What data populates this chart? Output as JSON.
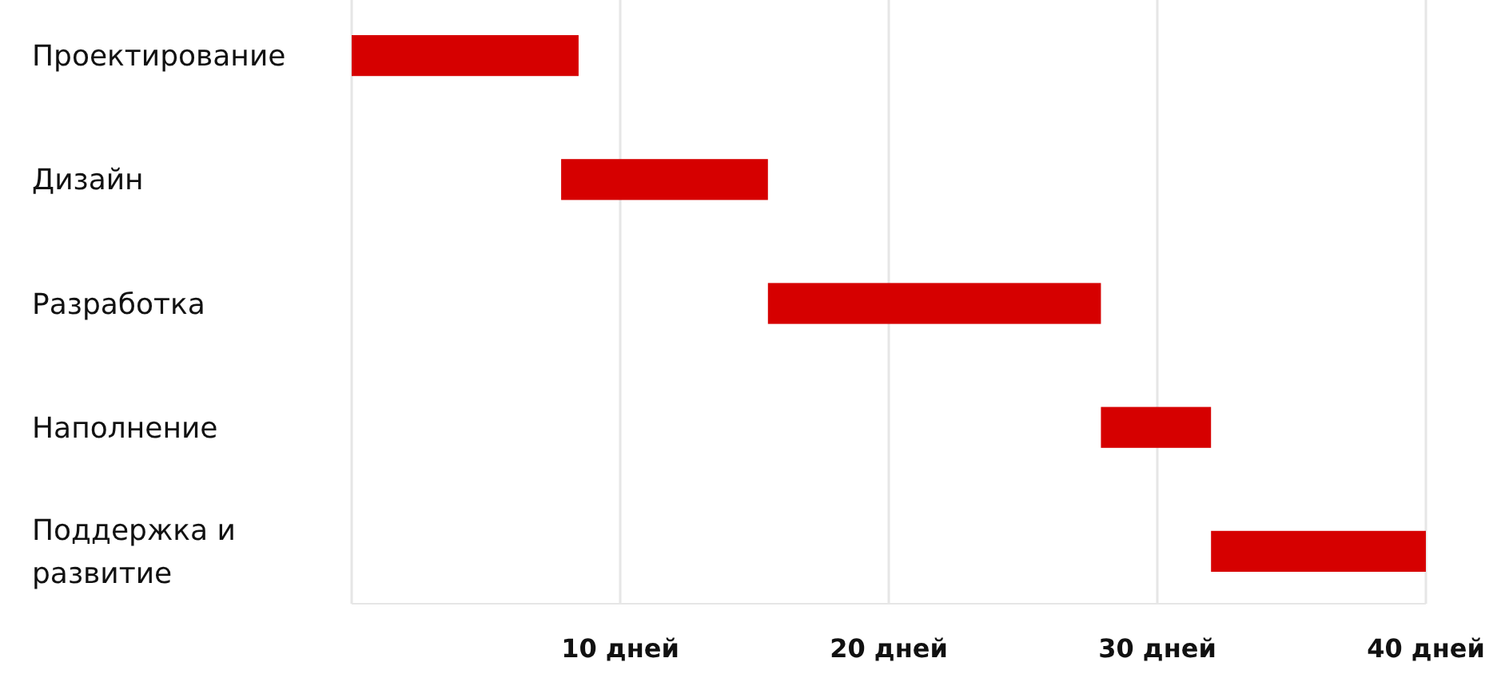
{
  "chart_data": {
    "type": "bar",
    "orientation": "horizontal",
    "categories": [
      "Проектирование",
      "Дизайн",
      "Разработка",
      "Наполнение",
      "Поддержка и развитие"
    ],
    "base": [
      0,
      7.8,
      15.5,
      27.9,
      32
    ],
    "values": [
      8.45,
      7.7,
      12.4,
      4.1,
      8
    ],
    "color": "#d60000",
    "xlim": [
      0,
      40
    ],
    "xticks": [
      {
        "value": 0,
        "label": null
      },
      {
        "value": 10,
        "label": "10 дней"
      },
      {
        "value": 20,
        "label": "20 дней"
      },
      {
        "value": 30,
        "label": "30 дней"
      },
      {
        "value": 40,
        "label": "40 дней"
      }
    ],
    "grid": "x"
  }
}
